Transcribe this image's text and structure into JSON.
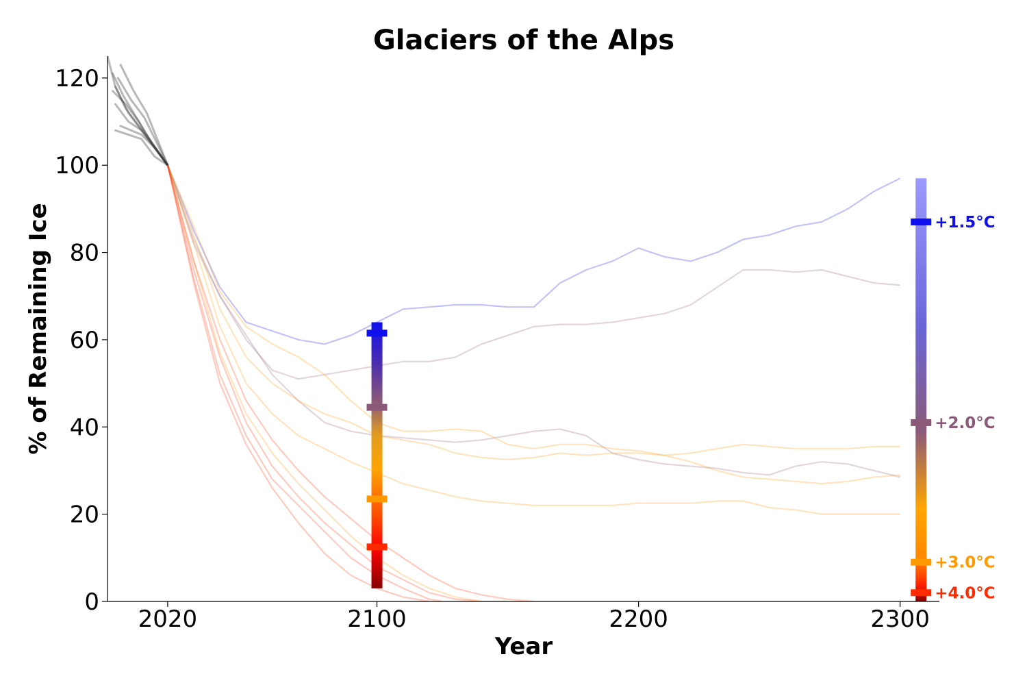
{
  "chart_data": {
    "type": "line",
    "title": "Glaciers of the Alps",
    "xlabel": "Year",
    "ylabel": "% of Remaining Ice",
    "xlim": [
      1997,
      2315
    ],
    "ylim": [
      0,
      125
    ],
    "xticks": [
      2020,
      2100,
      2200,
      2300
    ],
    "yticks": [
      0,
      20,
      40,
      60,
      80,
      100,
      120
    ],
    "grid": false,
    "colors": {
      "history": "#333333",
      "c15": "#1010ee",
      "c20": "#8b5a78",
      "c30": "#ff9900",
      "c40": "#ff2a00",
      "dark": "#880000"
    },
    "history_series": [
      {
        "x": [
          1997,
          2000,
          2005,
          2010,
          2015,
          2020
        ],
        "y": [
          125,
          118,
          112,
          108,
          104,
          100
        ]
      },
      {
        "x": [
          1999,
          2003,
          2008,
          2013,
          2020
        ],
        "y": [
          121,
          116,
          111,
          106,
          100
        ]
      },
      {
        "x": [
          1999,
          2004,
          2009,
          2014,
          2020
        ],
        "y": [
          117,
          114,
          110,
          105,
          100
        ]
      },
      {
        "x": [
          2000,
          2005,
          2010,
          2015,
          2020
        ],
        "y": [
          114,
          110,
          108,
          104,
          100
        ]
      },
      {
        "x": [
          2000,
          2004,
          2009,
          2013,
          2020
        ],
        "y": [
          118,
          113,
          109,
          106,
          100
        ]
      },
      {
        "x": [
          2001,
          2006,
          2011,
          2016,
          2020
        ],
        "y": [
          120,
          115,
          111,
          105,
          100
        ]
      },
      {
        "x": [
          2002,
          2006,
          2010,
          2015,
          2020
        ],
        "y": [
          109,
          108,
          107,
          104,
          100
        ]
      },
      {
        "x": [
          2000,
          2005,
          2010,
          2015,
          2020
        ],
        "y": [
          108,
          107,
          106,
          102,
          100
        ]
      },
      {
        "x": [
          2002,
          2007,
          2012,
          2016,
          2020
        ],
        "y": [
          123,
          117,
          112,
          106,
          100
        ]
      }
    ],
    "series": [
      {
        "scenario": "c15",
        "x": [
          2020,
          2030,
          2040,
          2050,
          2060,
          2070,
          2080,
          2090,
          2100,
          2110,
          2120,
          2130,
          2140,
          2150,
          2160,
          2170,
          2180,
          2190,
          2200,
          2210,
          2220,
          2230,
          2240,
          2250,
          2260,
          2270,
          2280,
          2290,
          2300
        ],
        "y": [
          100,
          85,
          72,
          64,
          62,
          60,
          59,
          61,
          64,
          67,
          67.5,
          68,
          68,
          67.5,
          67.5,
          73,
          76,
          78,
          81,
          79,
          78,
          80,
          83,
          84,
          86,
          87,
          90,
          94,
          97
        ]
      },
      {
        "scenario": "c20",
        "x": [
          2020,
          2030,
          2040,
          2050,
          2060,
          2070,
          2080,
          2090,
          2100,
          2110,
          2120,
          2130,
          2140,
          2150,
          2160,
          2170,
          2180,
          2190,
          2200,
          2210,
          2220,
          2230,
          2240,
          2250,
          2260,
          2270,
          2280,
          2290,
          2300
        ],
        "y": [
          100,
          83,
          70,
          60,
          53,
          51,
          52,
          53,
          54,
          55,
          55,
          56,
          59,
          61,
          63,
          63.5,
          63.5,
          64,
          65,
          66,
          68,
          72,
          76,
          76,
          75.5,
          76,
          74.5,
          73,
          72.5
        ]
      },
      {
        "scenario": "c20",
        "x": [
          2020,
          2030,
          2040,
          2050,
          2060,
          2070,
          2080,
          2090,
          2100,
          2110,
          2120,
          2130,
          2140,
          2150,
          2160,
          2170,
          2180,
          2190,
          2200,
          2210,
          2220,
          2230,
          2240,
          2250,
          2260,
          2270,
          2280,
          2290,
          2300
        ],
        "y": [
          100,
          82,
          70,
          61,
          52,
          46,
          41,
          39,
          38,
          37.5,
          37,
          36.5,
          37,
          38,
          39,
          39.5,
          38,
          34,
          32.5,
          31.5,
          31,
          30.5,
          29.5,
          29,
          31,
          32,
          31.5,
          30,
          28.5
        ]
      },
      {
        "scenario": "c30",
        "x": [
          2020,
          2030,
          2040,
          2050,
          2060,
          2070,
          2080,
          2090,
          2100,
          2110,
          2120,
          2130,
          2140,
          2150,
          2160,
          2170,
          2180,
          2190,
          2200,
          2210,
          2220,
          2230,
          2240,
          2250,
          2260,
          2270,
          2280,
          2290,
          2300
        ],
        "y": [
          100,
          86,
          71,
          63,
          59,
          56,
          52,
          46,
          41,
          39,
          39,
          39.5,
          39,
          36,
          35,
          36,
          36,
          35,
          34.5,
          33.5,
          32,
          30,
          28.5,
          28,
          27.5,
          27,
          27.5,
          28.5,
          29
        ]
      },
      {
        "scenario": "c30",
        "x": [
          2020,
          2030,
          2040,
          2050,
          2060,
          2070,
          2080,
          2090,
          2100,
          2110,
          2120,
          2130,
          2140,
          2150,
          2160,
          2170,
          2180,
          2190,
          2200,
          2210,
          2220,
          2230,
          2240,
          2250,
          2260,
          2270,
          2280,
          2290,
          2300
        ],
        "y": [
          100,
          84,
          67,
          56,
          50,
          46,
          43,
          41,
          38,
          37,
          36,
          34,
          33,
          32.5,
          33,
          34,
          33.5,
          34,
          34,
          33.5,
          34,
          35,
          36,
          35.5,
          35,
          35,
          35,
          35.5,
          35.5
        ]
      },
      {
        "scenario": "c30",
        "x": [
          2020,
          2030,
          2040,
          2050,
          2060,
          2070,
          2080,
          2090,
          2100,
          2110,
          2120,
          2130,
          2140,
          2150,
          2160,
          2170,
          2180,
          2190,
          2200,
          2210,
          2220,
          2230,
          2240,
          2250,
          2260,
          2270,
          2280,
          2290,
          2300
        ],
        "y": [
          100,
          82,
          63,
          50,
          43,
          38,
          35,
          32,
          29.5,
          27,
          25.5,
          24,
          23,
          22.5,
          22,
          22,
          22,
          22,
          22.5,
          22.5,
          22.5,
          23,
          23,
          21.5,
          21,
          20,
          20,
          20,
          20
        ]
      },
      {
        "scenario": "c30",
        "x": [
          2020,
          2030,
          2040,
          2050,
          2060,
          2070,
          2080,
          2090,
          2100,
          2110,
          2120,
          2130,
          2140,
          2150
        ],
        "y": [
          100,
          78,
          57,
          43,
          34,
          27,
          21,
          15,
          10,
          6,
          3,
          1,
          0,
          0
        ]
      },
      {
        "scenario": "c40",
        "x": [
          2020,
          2030,
          2040,
          2050,
          2060,
          2070,
          2080,
          2090,
          2100,
          2110,
          2120,
          2130,
          2140,
          2150,
          2160
        ],
        "y": [
          100,
          78,
          60,
          46,
          37,
          30,
          24,
          19,
          14,
          10,
          6,
          3,
          1.5,
          0.5,
          0
        ]
      },
      {
        "scenario": "c40",
        "x": [
          2020,
          2030,
          2040,
          2050,
          2060,
          2070,
          2080,
          2090,
          2100,
          2110,
          2120,
          2130,
          2140
        ],
        "y": [
          100,
          76,
          56,
          41,
          31,
          24,
          18,
          13,
          8,
          5,
          2,
          0.5,
          0
        ]
      },
      {
        "scenario": "c40",
        "x": [
          2020,
          2030,
          2040,
          2050,
          2060,
          2070,
          2080,
          2090,
          2100,
          2110,
          2120,
          2125
        ],
        "y": [
          100,
          74,
          52,
          38,
          28,
          22,
          16,
          10,
          6,
          3,
          0.5,
          0
        ]
      },
      {
        "scenario": "c40",
        "x": [
          2020,
          2030,
          2040,
          2050,
          2060,
          2070,
          2080,
          2090,
          2100,
          2110,
          2120
        ],
        "y": [
          100,
          73,
          50,
          36,
          26,
          18,
          11,
          6,
          3,
          1,
          0
        ]
      }
    ],
    "bar_2100": {
      "x": 2100,
      "range": [
        3,
        64
      ],
      "markers": [
        {
          "scenario": "c15",
          "value": 61.5
        },
        {
          "scenario": "c20",
          "value": 44.5
        },
        {
          "scenario": "c30",
          "value": 23.5
        },
        {
          "scenario": "c40",
          "value": 12.5
        }
      ]
    },
    "bar_2300": {
      "x": 2308,
      "range": [
        0,
        97
      ],
      "markers": [
        {
          "scenario": "c15",
          "value": 87,
          "label": "+1.5°C"
        },
        {
          "scenario": "c20",
          "value": 41,
          "label": "+2.0°C"
        },
        {
          "scenario": "c30",
          "value": 9,
          "label": "+3.0°C"
        },
        {
          "scenario": "c40",
          "value": 2,
          "label": "+4.0°C"
        }
      ]
    }
  }
}
